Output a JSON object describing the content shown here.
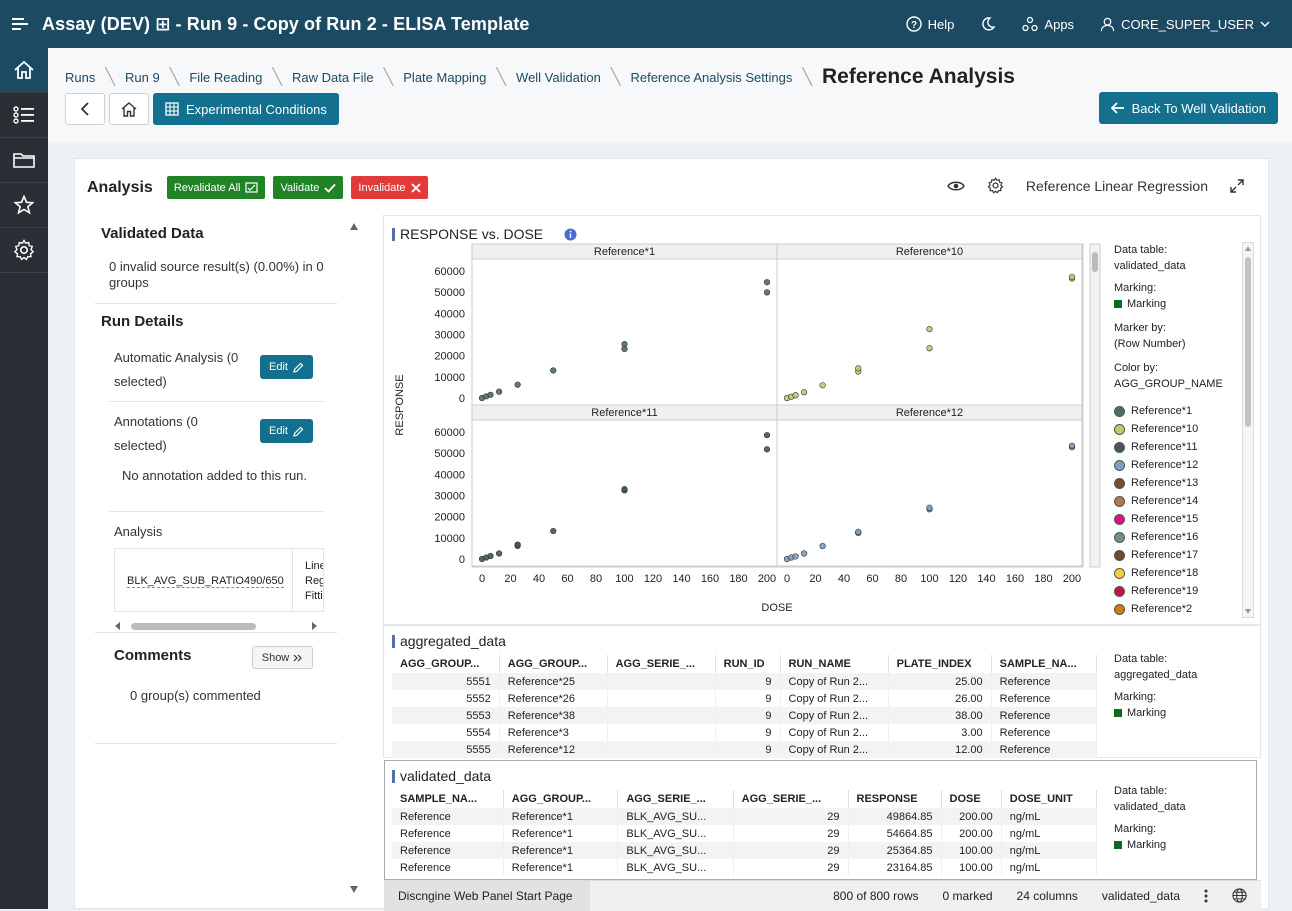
{
  "topbar": {
    "title": "Assay (DEV) ⊞ - Run 9 - Copy of Run 2 - ELISA Template",
    "help": "Help",
    "apps": "Apps",
    "user": "CORE_SUPER_USER"
  },
  "breadcrumb": [
    "Runs",
    "Run 9",
    "File Reading",
    "Raw Data File",
    "Plate Mapping",
    "Well Validation",
    "Reference Analysis Settings"
  ],
  "page_title": "Reference Analysis",
  "buttons": {
    "experimental_conditions": "Experimental Conditions",
    "back_to_well_validation": "Back To Well Validation",
    "revalidate_all": "Revalidate All",
    "validate": "Validate",
    "invalidate": "Invalidate"
  },
  "analysis": {
    "title": "Analysis",
    "tool_label": "Reference Linear Regression"
  },
  "left_panel": {
    "validated_data_title": "Validated Data",
    "validated_data_text": "0 invalid source result(s) (0.00%) in 0 groups",
    "run_details_title": "Run Details",
    "automatic_analysis": "Automatic Analysis (0 selected)",
    "annotations": "Annotations (0 selected)",
    "edit_label": "Edit",
    "no_annotation": "No annotation added to this run.",
    "analysis_label": "Analysis",
    "analysis_cell": "BLK_AVG_SUB_RATIO490/650",
    "analysis_cell2": [
      "Line",
      "Reg",
      "Fitti"
    ],
    "comments_title": "Comments",
    "show_label": "Show",
    "comments_text": "0 group(s) commented"
  },
  "chart_data": {
    "type": "scatter",
    "title": "RESPONSE vs. DOSE",
    "xlabel": "DOSE",
    "ylabel": "RESPONSE",
    "xlim": [
      0,
      200
    ],
    "ylim": [
      0,
      60000
    ],
    "xticks": [
      0,
      20,
      40,
      60,
      80,
      100,
      120,
      140,
      160,
      180,
      200
    ],
    "yticks": [
      0,
      10000,
      20000,
      30000,
      40000,
      50000,
      60000
    ],
    "panels": [
      {
        "name": "Reference*1",
        "color": "#4d6b6b",
        "points": [
          [
            0,
            0
          ],
          [
            3,
            800
          ],
          [
            6,
            1500
          ],
          [
            12,
            3000
          ],
          [
            25,
            6300
          ],
          [
            50,
            13000
          ],
          [
            100,
            25400
          ],
          [
            100,
            23200
          ],
          [
            200,
            54700
          ],
          [
            200,
            49900
          ]
        ]
      },
      {
        "name": "Reference*10",
        "color": "#b5cf6b",
        "points": [
          [
            0,
            0
          ],
          [
            3,
            600
          ],
          [
            6,
            1300
          ],
          [
            12,
            2700
          ],
          [
            25,
            6000
          ],
          [
            50,
            12500
          ],
          [
            50,
            14000
          ],
          [
            100,
            32500
          ],
          [
            100,
            23500
          ],
          [
            200,
            56500
          ],
          [
            200,
            57200
          ]
        ]
      },
      {
        "name": "Reference*11",
        "color": "#3d5a56",
        "points": [
          [
            0,
            0
          ],
          [
            3,
            700
          ],
          [
            6,
            1400
          ],
          [
            12,
            2600
          ],
          [
            25,
            6200
          ],
          [
            25,
            6800
          ],
          [
            50,
            13200
          ],
          [
            100,
            32400
          ],
          [
            100,
            33000
          ],
          [
            200,
            58500
          ],
          [
            200,
            51800
          ]
        ]
      },
      {
        "name": "Reference*12",
        "color": "#7d9fc0",
        "points": [
          [
            0,
            0
          ],
          [
            3,
            700
          ],
          [
            6,
            1200
          ],
          [
            12,
            2600
          ],
          [
            25,
            6100
          ],
          [
            50,
            12300
          ],
          [
            50,
            12800
          ],
          [
            100,
            23500
          ],
          [
            100,
            24200
          ],
          [
            200,
            52800
          ],
          [
            200,
            53500
          ]
        ]
      }
    ],
    "legend": {
      "data_table_label": "Data table:",
      "data_table": "validated_data",
      "marking_label": "Marking:",
      "marking": "Marking",
      "marker_by_label": "Marker by:",
      "marker_by": "(Row Number)",
      "color_by_label": "Color by:",
      "color_by": "AGG_GROUP_NAME",
      "items": [
        {
          "name": "Reference*1",
          "color": "#4d6b6b"
        },
        {
          "name": "Reference*10",
          "color": "#b5cf6b"
        },
        {
          "name": "Reference*11",
          "color": "#3d5a56"
        },
        {
          "name": "Reference*12",
          "color": "#7d9fc0"
        },
        {
          "name": "Reference*13",
          "color": "#7a4b2a"
        },
        {
          "name": "Reference*14",
          "color": "#b0784f"
        },
        {
          "name": "Reference*15",
          "color": "#e0127a"
        },
        {
          "name": "Reference*16",
          "color": "#6d8f8f"
        },
        {
          "name": "Reference*17",
          "color": "#6e4a2e"
        },
        {
          "name": "Reference*18",
          "color": "#f2d23a"
        },
        {
          "name": "Reference*19",
          "color": "#c80f5a"
        },
        {
          "name": "Reference*2",
          "color": "#d47a12"
        }
      ]
    }
  },
  "aggregated_table": {
    "title": "aggregated_data",
    "columns": [
      "AGG_GROUP...",
      "AGG_GROUP...",
      "AGG_SERIE_...",
      "RUN_ID",
      "RUN_NAME",
      "PLATE_INDEX",
      "SAMPLE_NA..."
    ],
    "rows": [
      [
        "5551",
        "Reference*25",
        "",
        "9",
        "Copy of Run 2...",
        "25.00",
        "Reference"
      ],
      [
        "5552",
        "Reference*26",
        "",
        "9",
        "Copy of Run 2...",
        "26.00",
        "Reference"
      ],
      [
        "5553",
        "Reference*38",
        "",
        "9",
        "Copy of Run 2...",
        "38.00",
        "Reference"
      ],
      [
        "5554",
        "Reference*3",
        "",
        "9",
        "Copy of Run 2...",
        "3.00",
        "Reference"
      ],
      [
        "5555",
        "Reference*12",
        "",
        "9",
        "Copy of Run 2...",
        "12.00",
        "Reference"
      ]
    ],
    "meta": {
      "data_table_label": "Data table:",
      "data_table": "aggregated_data",
      "marking_label": "Marking:",
      "marking": "Marking"
    }
  },
  "validated_table": {
    "title": "validated_data",
    "columns": [
      "SAMPLE_NA...",
      "AGG_GROUP...",
      "AGG_SERIE_...",
      "AGG_SERIE_...",
      "RESPONSE",
      "DOSE",
      "DOSE_UNIT"
    ],
    "rows": [
      [
        "Reference",
        "Reference*1",
        "BLK_AVG_SU...",
        "29",
        "49864.85",
        "200.00",
        "ng/mL"
      ],
      [
        "Reference",
        "Reference*1",
        "BLK_AVG_SU...",
        "29",
        "54664.85",
        "200.00",
        "ng/mL"
      ],
      [
        "Reference",
        "Reference*1",
        "BLK_AVG_SU...",
        "29",
        "25364.85",
        "100.00",
        "ng/mL"
      ],
      [
        "Reference",
        "Reference*1",
        "BLK_AVG_SU...",
        "29",
        "23164.85",
        "100.00",
        "ng/mL"
      ]
    ],
    "meta": {
      "data_table_label": "Data table:",
      "data_table": "validated_data",
      "marking_label": "Marking:",
      "marking": "Marking"
    }
  },
  "statusbar": {
    "start_page": "Discngine Web Panel Start Page",
    "rows": "800 of 800 rows",
    "marked": "0 marked",
    "columns": "24 columns",
    "table": "validated_data"
  }
}
